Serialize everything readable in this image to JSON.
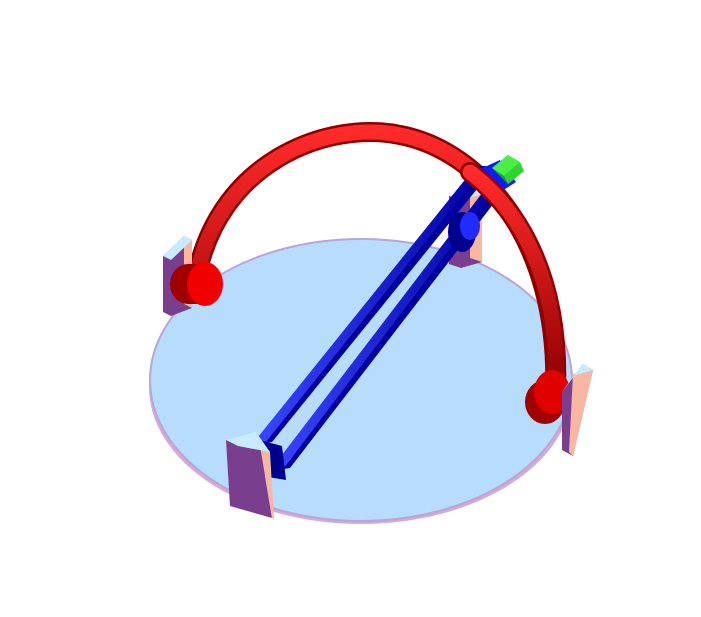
{
  "scene": {
    "description_visible_text": "",
    "colors": {
      "background": "#ffffff",
      "platform_top": "#b8dcfb",
      "platform_rim": "#c9a9d9",
      "arc": "#d40000",
      "arc_dark": "#8e0000",
      "rod": "#0008ff",
      "rod_dark": "#00008f",
      "end_block": "#2fd62f",
      "post_front": "#7a3e8e",
      "post_side": "#f7b7a0",
      "post_top": "#c7ecff"
    }
  }
}
